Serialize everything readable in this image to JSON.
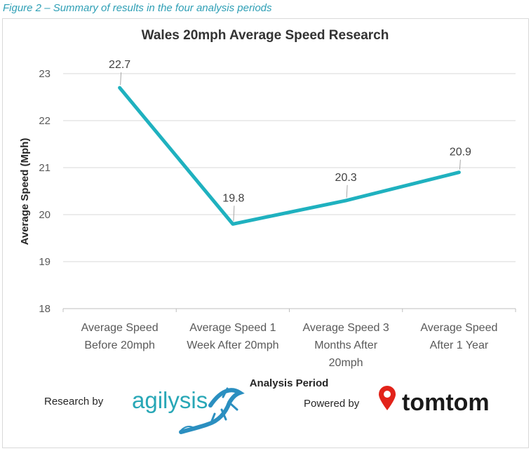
{
  "caption": "Figure 2 – Summary of results in the four analysis periods",
  "chart_data": {
    "type": "line",
    "title": "Wales 20mph Average Speed Research",
    "xlabel": "Analysis Period",
    "ylabel": "Average Speed (Mph)",
    "ylim": [
      18,
      23
    ],
    "yticks": [
      18,
      19,
      20,
      21,
      22,
      23
    ],
    "categories": [
      [
        "Average Speed",
        "Before 20mph"
      ],
      [
        "Average Speed  1",
        "Week After  20mph"
      ],
      [
        "Average Speed 3",
        "Months After",
        "20mph"
      ],
      [
        "Average Speed",
        "After 1 Year"
      ]
    ],
    "series": [
      {
        "name": "Average Speed",
        "values": [
          22.7,
          19.8,
          20.3,
          20.9
        ],
        "labels": [
          "22.7",
          "19.8",
          "20.3",
          "20.9"
        ]
      }
    ],
    "grid": true,
    "line_color": "#1fb1bf"
  },
  "footer": {
    "research_by": "Research by",
    "agilysis": "agilysis",
    "powered_by": "Powered by",
    "tomtom": "tomtom"
  },
  "colors": {
    "accent": "#1fb1bf",
    "caption": "#2e9fb5",
    "tomtom_red": "#e2231a"
  }
}
